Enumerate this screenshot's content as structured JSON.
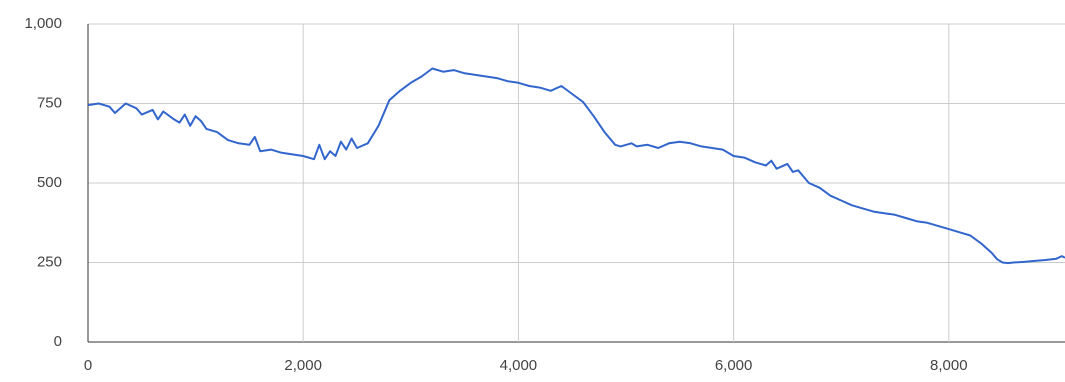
{
  "chart_data": {
    "type": "line",
    "color": "#3366cc",
    "grid": true,
    "xlim": [
      0,
      9080
    ],
    "ylim": [
      0,
      1000
    ],
    "xticks": [
      0,
      {
        "value": 2000,
        "label": "2,000"
      },
      {
        "value": 4000,
        "label": "4,000"
      },
      {
        "value": 6000,
        "label": "6,000"
      },
      {
        "value": 8000,
        "label": "8,000"
      }
    ],
    "yticks": [
      0,
      250,
      500,
      750,
      {
        "value": 1000,
        "label": "1,000"
      }
    ],
    "x": [
      0,
      100,
      200,
      250,
      350,
      450,
      500,
      600,
      650,
      700,
      800,
      850,
      900,
      950,
      1000,
      1050,
      1100,
      1200,
      1300,
      1400,
      1500,
      1550,
      1600,
      1700,
      1800,
      1900,
      2000,
      2100,
      2150,
      2200,
      2250,
      2300,
      2350,
      2400,
      2450,
      2500,
      2600,
      2700,
      2800,
      2900,
      3000,
      3100,
      3200,
      3300,
      3400,
      3500,
      3600,
      3700,
      3800,
      3900,
      4000,
      4100,
      4200,
      4300,
      4400,
      4500,
      4600,
      4700,
      4800,
      4900,
      4950,
      5050,
      5100,
      5200,
      5300,
      5400,
      5500,
      5600,
      5700,
      5800,
      5900,
      6000,
      6100,
      6200,
      6300,
      6350,
      6400,
      6500,
      6550,
      6600,
      6700,
      6800,
      6900,
      7000,
      7100,
      7200,
      7300,
      7400,
      7500,
      7600,
      7700,
      7800,
      7900,
      8000,
      8100,
      8200,
      8300,
      8400,
      8450,
      8500,
      8550,
      8600,
      8700,
      8800,
      8900,
      9000,
      9050,
      9080
    ],
    "values": [
      745,
      750,
      740,
      720,
      750,
      735,
      715,
      730,
      700,
      725,
      700,
      690,
      715,
      680,
      710,
      695,
      670,
      660,
      635,
      625,
      620,
      645,
      600,
      605,
      595,
      590,
      585,
      575,
      620,
      575,
      600,
      585,
      630,
      605,
      640,
      610,
      625,
      680,
      760,
      790,
      815,
      835,
      860,
      850,
      855,
      845,
      840,
      835,
      830,
      820,
      815,
      805,
      800,
      790,
      805,
      780,
      755,
      710,
      660,
      620,
      615,
      625,
      615,
      620,
      610,
      625,
      630,
      625,
      615,
      610,
      605,
      585,
      580,
      565,
      555,
      570,
      545,
      560,
      535,
      540,
      500,
      485,
      460,
      445,
      430,
      420,
      410,
      405,
      400,
      390,
      380,
      375,
      365,
      355,
      345,
      335,
      310,
      280,
      260,
      250,
      248,
      250,
      252,
      255,
      258,
      262,
      270,
      265
    ]
  }
}
